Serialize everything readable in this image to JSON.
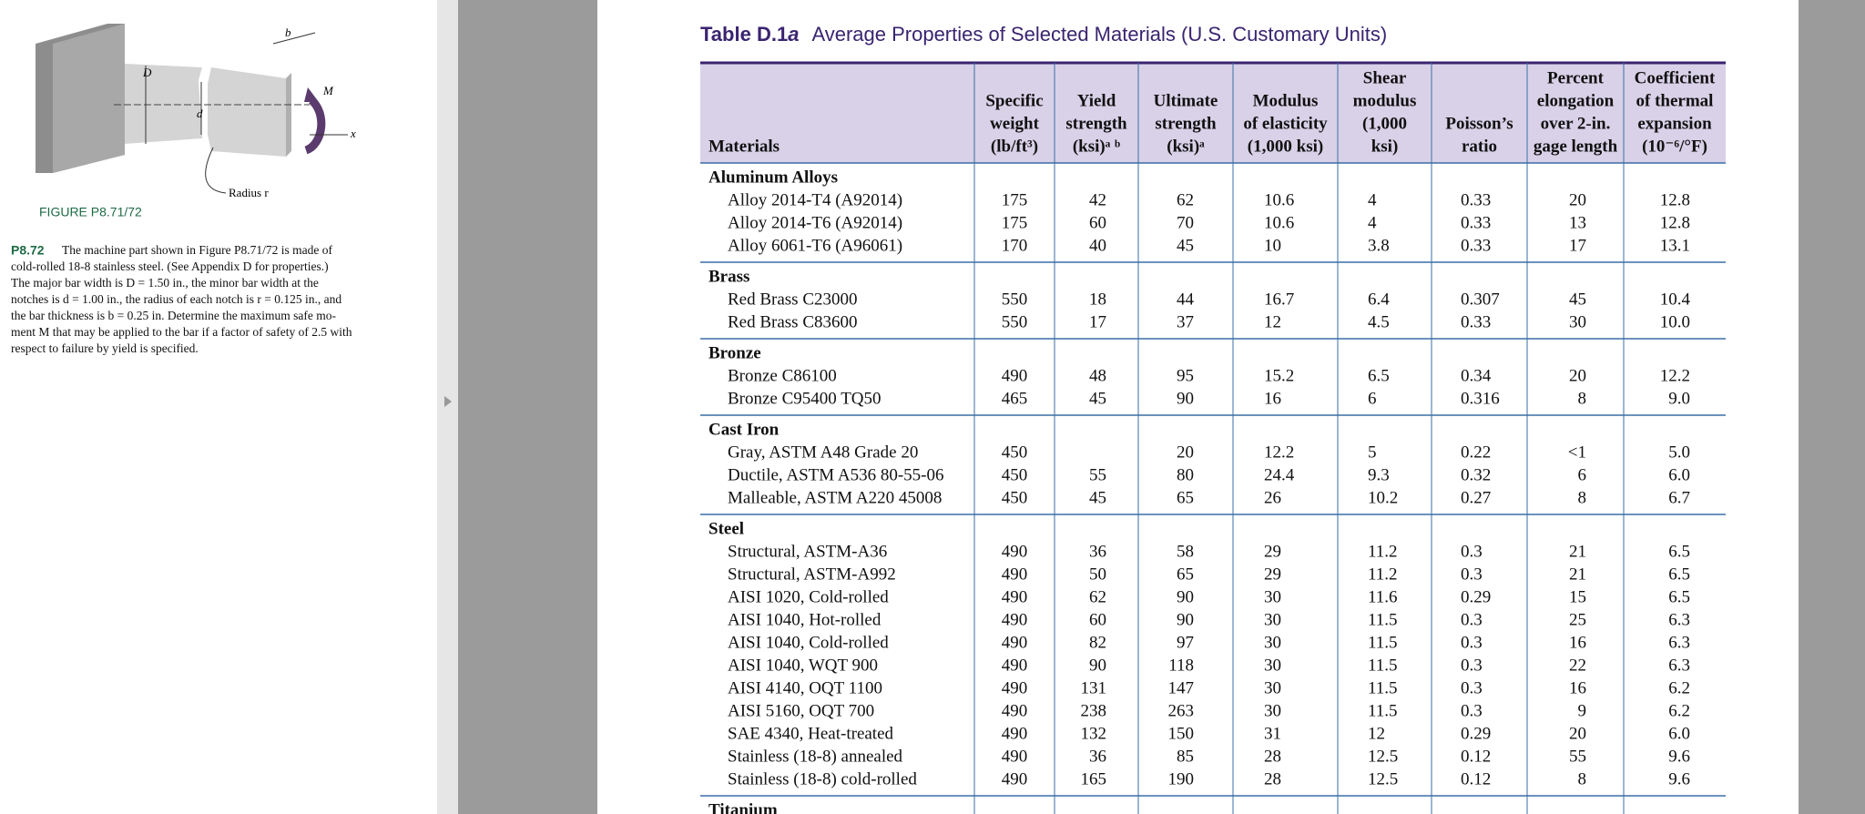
{
  "figure": {
    "labels": {
      "b": "b",
      "M": "M",
      "D": "D",
      "d": "d",
      "x": "x",
      "radius": "Radius r"
    },
    "caption": "FIGURE P8.71/72"
  },
  "problem": {
    "number": "P8.72",
    "lines": [
      "The machine part shown in Figure P8.71/72 is made of",
      "cold-rolled 18-8 stainless steel. (See Appendix D for properties.)",
      "The major bar width is D = 1.50 in., the minor bar width at the",
      "notches is d = 1.00 in., the radius of each notch is r = 0.125 in., and",
      "the bar thickness is b = 0.25 in. Determine the maximum safe mo-",
      "ment M that may be applied to the bar if a factor of safety of 2.5 with",
      "respect to failure by yield is specified."
    ]
  },
  "table": {
    "title": {
      "label": "Table D.1",
      "suffix": "a",
      "text": "Average Properties of Selected Materials (U.S. Customary Units)"
    },
    "header": [
      [
        "Materials"
      ],
      [
        "Specific",
        "weight",
        "(lb/ft³)"
      ],
      [
        "Yield",
        "strength",
        "(ksi)ᵃ ᵇ"
      ],
      [
        "Ultimate",
        "strength",
        "(ksi)ᵃ"
      ],
      [
        "Modulus",
        "of elasticity",
        "(1,000 ksi)"
      ],
      [
        "Shear",
        "modulus",
        "(1,000",
        "ksi)"
      ],
      [
        "Poisson’s",
        "ratio"
      ],
      [
        "Percent",
        "elongation",
        "over 2-in.",
        "gage length"
      ],
      [
        "Coefficient",
        "of thermal",
        "expansion",
        "(10⁻⁶/°F)"
      ]
    ],
    "groups": [
      {
        "name": "Aluminum Alloys",
        "rows": [
          [
            "Alloy 2014-T4 (A92014)",
            "175",
            "42",
            "62",
            "10.6",
            "4",
            "0.33",
            "20",
            "12.8"
          ],
          [
            "Alloy 2014-T6 (A92014)",
            "175",
            "60",
            "70",
            "10.6",
            "4",
            "0.33",
            "13",
            "12.8"
          ],
          [
            "Alloy 6061-T6 (A96061)",
            "170",
            "40",
            "45",
            "10",
            "3.8",
            "0.33",
            "17",
            "13.1"
          ]
        ]
      },
      {
        "name": "Brass",
        "rows": [
          [
            "Red Brass C23000",
            "550",
            "18",
            "44",
            "16.7",
            "6.4",
            "0.307",
            "45",
            "10.4"
          ],
          [
            "Red Brass C83600",
            "550",
            "17",
            "37",
            "12",
            "4.5",
            "0.33",
            "30",
            "10.0"
          ]
        ]
      },
      {
        "name": "Bronze",
        "rows": [
          [
            "Bronze C86100",
            "490",
            "48",
            "95",
            "15.2",
            "6.5",
            "0.34",
            "20",
            "12.2"
          ],
          [
            "Bronze C95400 TQ50",
            "465",
            "45",
            "90",
            "16",
            "6",
            "0.316",
            "8",
            "9.0"
          ]
        ]
      },
      {
        "name": "Cast Iron",
        "rows": [
          [
            "Gray, ASTM A48 Grade 20",
            "450",
            null,
            "20",
            "12.2",
            "5",
            "0.22",
            "<1",
            "5.0"
          ],
          [
            "Ductile, ASTM A536 80-55-06",
            "450",
            "55",
            "80",
            "24.4",
            "9.3",
            "0.32",
            "6",
            "6.0"
          ],
          [
            "Malleable, ASTM A220 45008",
            "450",
            "45",
            "65",
            "26",
            "10.2",
            "0.27",
            "8",
            "6.7"
          ]
        ]
      },
      {
        "name": "Steel",
        "rows": [
          [
            "Structural, ASTM-A36",
            "490",
            "36",
            "58",
            "29",
            "11.2",
            "0.3",
            "21",
            "6.5"
          ],
          [
            "Structural, ASTM-A992",
            "490",
            "50",
            "65",
            "29",
            "11.2",
            "0.3",
            "21",
            "6.5"
          ],
          [
            "AISI 1020, Cold-rolled",
            "490",
            "62",
            "90",
            "30",
            "11.6",
            "0.29",
            "15",
            "6.5"
          ],
          [
            "AISI 1040, Hot-rolled",
            "490",
            "60",
            "90",
            "30",
            "11.5",
            "0.3",
            "25",
            "6.3"
          ],
          [
            "AISI 1040, Cold-rolled",
            "490",
            "82",
            "97",
            "30",
            "11.5",
            "0.3",
            "16",
            "6.3"
          ],
          [
            "AISI 1040, WQT 900",
            "490",
            "90",
            "118",
            "30",
            "11.5",
            "0.3",
            "22",
            "6.3"
          ],
          [
            "AISI 4140, OQT 1100",
            "490",
            "131",
            "147",
            "30",
            "11.5",
            "0.3",
            "16",
            "6.2"
          ],
          [
            "AISI 5160, OQT 700",
            "490",
            "238",
            "263",
            "30",
            "11.5",
            "0.3",
            "9",
            "6.2"
          ],
          [
            "SAE 4340, Heat-treated",
            "490",
            "132",
            "150",
            "31",
            "12",
            "0.29",
            "20",
            "6.0"
          ],
          [
            "Stainless (18-8) annealed",
            "490",
            "36",
            "85",
            "28",
            "12.5",
            "0.12",
            "55",
            "9.6"
          ],
          [
            "Stainless (18-8) cold-rolled",
            "490",
            "165",
            "190",
            "28",
            "12.5",
            "0.12",
            "8",
            "9.6"
          ]
        ]
      },
      {
        "name": "Titanium",
        "rows": []
      }
    ]
  }
}
